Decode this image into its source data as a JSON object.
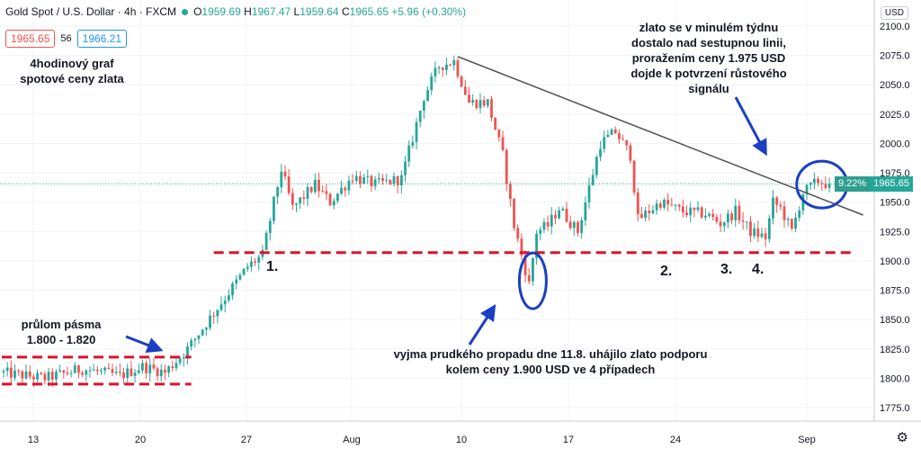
{
  "header": {
    "symbol": "Gold Spot / U.S. Dollar · 4h · FXCM",
    "open_label": "O",
    "open": "1959.69",
    "high_label": "H",
    "high": "1967.47",
    "low_label": "L",
    "low": "1959.64",
    "close_label": "C",
    "close": "1965.65",
    "change": "+5.96 (+0.30%)"
  },
  "trade": {
    "sell": "1965.65",
    "spread": "56",
    "buy": "1966.21"
  },
  "currency": "USD",
  "current_price": {
    "pct": "9.22%",
    "price": "1965.65"
  },
  "colors": {
    "up": "#26a69a",
    "down": "#ef5350",
    "annotation": "#1a3fc4",
    "support": "#e0102a",
    "trendline": "#555555"
  },
  "annotations": {
    "title": "4hodinový graf\nspotové ceny zlata",
    "breakout": "průlom pásma\n1.800 - 1.820",
    "support": "vyjma prudkého propadu dne 11.8. uhájilo zlato podporu\nkolem ceny 1.900 USD ve 4 případech",
    "signal": "zlato se v minulém týdnu\ndostalo nad sestupnou linii,\nproražením ceny 1.975 USD\ndojde k potvrzení růstového\nsignálu",
    "touch_labels": [
      "1.",
      "2.",
      "3.",
      "4."
    ]
  },
  "chart_data": {
    "type": "candlestick",
    "timeframe": "4h",
    "y_axis": {
      "ticks": [
        1775,
        1800,
        1825,
        1850,
        1875,
        1900,
        1925,
        1950,
        1975,
        2000,
        2025,
        2050,
        2075,
        2100
      ],
      "range": [
        1760,
        2115
      ],
      "unit": "USD"
    },
    "x_axis": {
      "ticks": [
        "13",
        "20",
        "27",
        "Aug",
        "10",
        "17",
        "24",
        "Sep"
      ]
    },
    "waypoints": [
      [
        0,
        1805
      ],
      [
        12,
        1800
      ],
      [
        22,
        1808
      ],
      [
        32,
        1802
      ],
      [
        38,
        1810
      ],
      [
        44,
        1805
      ],
      [
        48,
        1818
      ],
      [
        50,
        1825
      ],
      [
        58,
        1860
      ],
      [
        66,
        1895
      ],
      [
        70,
        1905
      ],
      [
        73,
        1950
      ],
      [
        75,
        1978
      ],
      [
        78,
        1945
      ],
      [
        84,
        1965
      ],
      [
        88,
        1950
      ],
      [
        94,
        1972
      ],
      [
        100,
        1965
      ],
      [
        107,
        1970
      ],
      [
        113,
        2040
      ],
      [
        117,
        2066
      ],
      [
        121,
        2070
      ],
      [
        125,
        2035
      ],
      [
        130,
        2035
      ],
      [
        134,
        1990
      ],
      [
        137,
        1930
      ],
      [
        139,
        1905
      ],
      [
        141,
        1880
      ],
      [
        143,
        1925
      ],
      [
        146,
        1930
      ],
      [
        149,
        1945
      ],
      [
        154,
        1925
      ],
      [
        160,
        2000
      ],
      [
        164,
        2010
      ],
      [
        168,
        1990
      ],
      [
        170,
        1935
      ],
      [
        176,
        1950
      ],
      [
        182,
        1942
      ],
      [
        188,
        1940
      ],
      [
        192,
        1932
      ],
      [
        196,
        1942
      ],
      [
        200,
        1925
      ],
      [
        204,
        1920
      ],
      [
        206,
        1950
      ],
      [
        208,
        1945
      ],
      [
        211,
        1925
      ],
      [
        214,
        1958
      ],
      [
        218,
        1968
      ],
      [
        220,
        1966
      ]
    ],
    "support_level": 1907,
    "consolidation_band": [
      1795,
      1818
    ],
    "trendline": {
      "from": [
        121,
        2074
      ],
      "to": [
        229,
        1939
      ]
    },
    "last_close": 1965.65
  }
}
